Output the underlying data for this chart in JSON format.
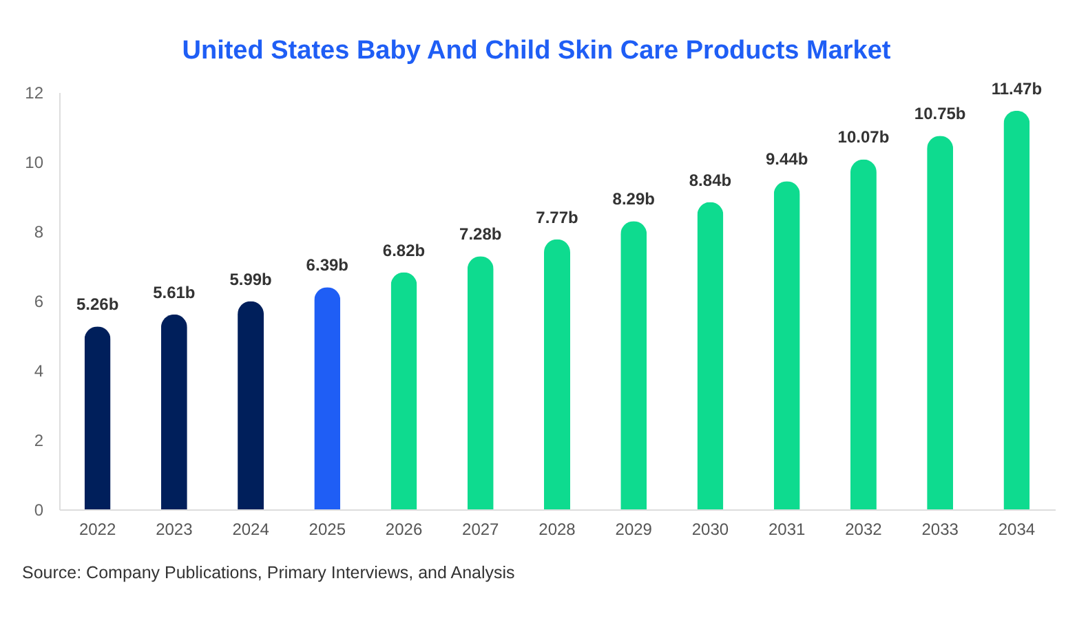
{
  "chart_data": {
    "type": "bar",
    "title": "United States Baby And Child Skin Care Products Market",
    "categories": [
      "2022",
      "2023",
      "2024",
      "2025",
      "2026",
      "2027",
      "2028",
      "2029",
      "2030",
      "2031",
      "2032",
      "2033",
      "2034"
    ],
    "values": [
      5.26,
      5.61,
      5.99,
      6.39,
      6.82,
      7.28,
      7.77,
      8.29,
      8.84,
      9.44,
      10.07,
      10.75,
      11.47
    ],
    "colors": [
      "#001f5b",
      "#001f5b",
      "#001f5b",
      "#1f5ef5",
      "#0edb8f",
      "#0edb8f",
      "#0edb8f",
      "#0edb8f",
      "#0edb8f",
      "#0edb8f",
      "#0edb8f",
      "#0edb8f",
      "#0edb8f"
    ],
    "value_labels": [
      "5.26b",
      "5.61b",
      "5.99b",
      "6.39b",
      "6.82b",
      "7.28b",
      "7.77b",
      "8.29b",
      "8.84b",
      "9.44b",
      "10.07b",
      "10.75b",
      "11.47b"
    ],
    "ylim": [
      0,
      12
    ],
    "yticks": [
      0,
      2,
      4,
      6,
      8,
      10,
      12
    ],
    "grid": false,
    "annotations": [
      "Source: Company Publications, Primary Interviews, and Analysis"
    ]
  }
}
